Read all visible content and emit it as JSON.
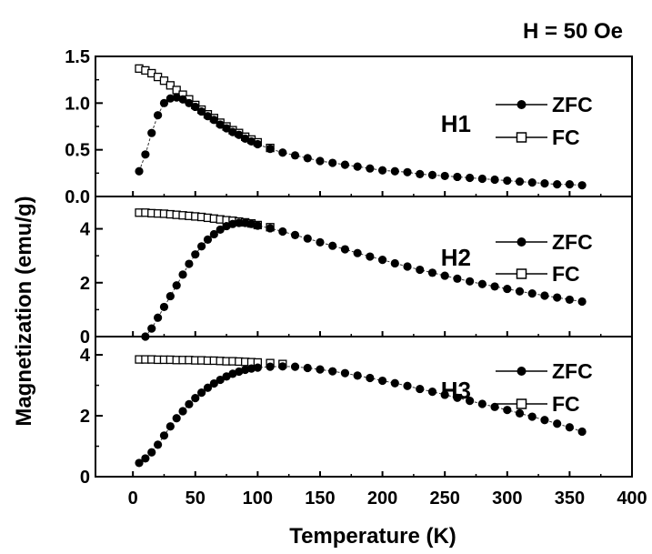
{
  "figure": {
    "field_label": "H = 50 Oe",
    "xlabel": "Temperature (K)",
    "ylabel": "Magnetization (emu/g)"
  },
  "chart_data": [
    {
      "type": "scatter",
      "panel_label": "H1",
      "xlim": [
        -30,
        400
      ],
      "ylim": [
        0,
        1.5
      ],
      "yticks": [
        0.0,
        0.5,
        1.0,
        1.5
      ],
      "ytick_labels": [
        "0.0",
        "0.5",
        "1.0",
        "1.5"
      ],
      "legend": {
        "zfc_label": "ZFC",
        "fc_label": "FC",
        "position": "right"
      },
      "zfc": [
        [
          5,
          0.27
        ],
        [
          10,
          0.45
        ],
        [
          15,
          0.68
        ],
        [
          20,
          0.87
        ],
        [
          25,
          1.0
        ],
        [
          30,
          1.05
        ],
        [
          35,
          1.06
        ],
        [
          40,
          1.04
        ],
        [
          45,
          1.0
        ],
        [
          50,
          0.96
        ],
        [
          55,
          0.91
        ],
        [
          60,
          0.86
        ],
        [
          65,
          0.82
        ],
        [
          70,
          0.77
        ],
        [
          75,
          0.73
        ],
        [
          80,
          0.69
        ],
        [
          85,
          0.66
        ],
        [
          90,
          0.62
        ],
        [
          95,
          0.59
        ],
        [
          100,
          0.56
        ],
        [
          110,
          0.51
        ],
        [
          120,
          0.47
        ],
        [
          130,
          0.44
        ],
        [
          140,
          0.41
        ],
        [
          150,
          0.38
        ],
        [
          160,
          0.36
        ],
        [
          170,
          0.34
        ],
        [
          180,
          0.32
        ],
        [
          190,
          0.3
        ],
        [
          200,
          0.28
        ],
        [
          210,
          0.27
        ],
        [
          220,
          0.26
        ],
        [
          230,
          0.24
        ],
        [
          240,
          0.23
        ],
        [
          250,
          0.22
        ],
        [
          260,
          0.21
        ],
        [
          270,
          0.2
        ],
        [
          280,
          0.19
        ],
        [
          290,
          0.18
        ],
        [
          300,
          0.17
        ],
        [
          310,
          0.16
        ],
        [
          320,
          0.15
        ],
        [
          330,
          0.14
        ],
        [
          340,
          0.13
        ],
        [
          350,
          0.13
        ],
        [
          360,
          0.12
        ]
      ],
      "fc": [
        [
          5,
          1.37
        ],
        [
          10,
          1.35
        ],
        [
          15,
          1.32
        ],
        [
          20,
          1.28
        ],
        [
          25,
          1.24
        ],
        [
          30,
          1.19
        ],
        [
          35,
          1.14
        ],
        [
          40,
          1.09
        ],
        [
          45,
          1.04
        ],
        [
          50,
          0.98
        ],
        [
          55,
          0.93
        ],
        [
          60,
          0.88
        ],
        [
          65,
          0.84
        ],
        [
          70,
          0.79
        ],
        [
          75,
          0.75
        ],
        [
          80,
          0.71
        ],
        [
          85,
          0.68
        ],
        [
          90,
          0.64
        ],
        [
          95,
          0.61
        ],
        [
          100,
          0.58
        ],
        [
          110,
          0.52
        ]
      ]
    },
    {
      "type": "scatter",
      "panel_label": "H2",
      "xlim": [
        -30,
        400
      ],
      "ylim": [
        0,
        5.2
      ],
      "yticks": [
        0,
        2,
        4
      ],
      "ytick_labels": [
        "0",
        "2",
        "4"
      ],
      "legend": {
        "zfc_label": "ZFC",
        "fc_label": "FC",
        "position": "right"
      },
      "zfc": [
        [
          10,
          0.0
        ],
        [
          15,
          0.3
        ],
        [
          20,
          0.7
        ],
        [
          25,
          1.1
        ],
        [
          30,
          1.5
        ],
        [
          35,
          1.9
        ],
        [
          40,
          2.3
        ],
        [
          45,
          2.7
        ],
        [
          50,
          3.05
        ],
        [
          55,
          3.35
        ],
        [
          60,
          3.6
        ],
        [
          65,
          3.8
        ],
        [
          70,
          3.97
        ],
        [
          75,
          4.1
        ],
        [
          80,
          4.18
        ],
        [
          85,
          4.22
        ],
        [
          90,
          4.22
        ],
        [
          95,
          4.18
        ],
        [
          100,
          4.12
        ],
        [
          110,
          4.02
        ],
        [
          120,
          3.9
        ],
        [
          130,
          3.77
        ],
        [
          140,
          3.64
        ],
        [
          150,
          3.5
        ],
        [
          160,
          3.37
        ],
        [
          170,
          3.24
        ],
        [
          180,
          3.1
        ],
        [
          190,
          2.97
        ],
        [
          200,
          2.85
        ],
        [
          210,
          2.72
        ],
        [
          220,
          2.6
        ],
        [
          230,
          2.48
        ],
        [
          240,
          2.37
        ],
        [
          250,
          2.26
        ],
        [
          260,
          2.15
        ],
        [
          270,
          2.05
        ],
        [
          280,
          1.95
        ],
        [
          290,
          1.86
        ],
        [
          300,
          1.77
        ],
        [
          310,
          1.68
        ],
        [
          320,
          1.6
        ],
        [
          330,
          1.52
        ],
        [
          340,
          1.45
        ],
        [
          350,
          1.37
        ],
        [
          360,
          1.3
        ]
      ],
      "fc": [
        [
          5,
          4.6
        ],
        [
          10,
          4.6
        ],
        [
          15,
          4.58
        ],
        [
          20,
          4.57
        ],
        [
          25,
          4.56
        ],
        [
          30,
          4.54
        ],
        [
          35,
          4.52
        ],
        [
          40,
          4.5
        ],
        [
          45,
          4.48
        ],
        [
          50,
          4.46
        ],
        [
          55,
          4.44
        ],
        [
          60,
          4.41
        ],
        [
          65,
          4.38
        ],
        [
          70,
          4.35
        ],
        [
          75,
          4.32
        ],
        [
          80,
          4.3
        ],
        [
          85,
          4.27
        ],
        [
          90,
          4.24
        ],
        [
          95,
          4.2
        ],
        [
          100,
          4.14
        ],
        [
          110,
          4.06
        ]
      ]
    },
    {
      "type": "scatter",
      "panel_label": "H3",
      "xlim": [
        -30,
        400
      ],
      "ylim": [
        0,
        4.6
      ],
      "yticks": [
        0,
        2,
        4
      ],
      "ytick_labels": [
        "0",
        "2",
        "4"
      ],
      "xticks": [
        0,
        50,
        100,
        150,
        200,
        250,
        300,
        350,
        400
      ],
      "xtick_labels": [
        "0",
        "50",
        "100",
        "150",
        "200",
        "250",
        "300",
        "350",
        "400"
      ],
      "legend": {
        "zfc_label": "ZFC",
        "fc_label": "FC",
        "position": "right"
      },
      "zfc": [
        [
          5,
          0.45
        ],
        [
          10,
          0.6
        ],
        [
          15,
          0.8
        ],
        [
          20,
          1.05
        ],
        [
          25,
          1.35
        ],
        [
          30,
          1.65
        ],
        [
          35,
          1.92
        ],
        [
          40,
          2.15
        ],
        [
          45,
          2.38
        ],
        [
          50,
          2.58
        ],
        [
          55,
          2.76
        ],
        [
          60,
          2.92
        ],
        [
          65,
          3.06
        ],
        [
          70,
          3.18
        ],
        [
          75,
          3.29
        ],
        [
          80,
          3.38
        ],
        [
          85,
          3.45
        ],
        [
          90,
          3.51
        ],
        [
          95,
          3.55
        ],
        [
          100,
          3.58
        ],
        [
          110,
          3.61
        ],
        [
          120,
          3.62
        ],
        [
          130,
          3.61
        ],
        [
          140,
          3.57
        ],
        [
          150,
          3.52
        ],
        [
          160,
          3.46
        ],
        [
          170,
          3.4
        ],
        [
          180,
          3.32
        ],
        [
          190,
          3.24
        ],
        [
          200,
          3.15
        ],
        [
          210,
          3.07
        ],
        [
          220,
          2.98
        ],
        [
          230,
          2.88
        ],
        [
          240,
          2.79
        ],
        [
          250,
          2.69
        ],
        [
          260,
          2.59
        ],
        [
          270,
          2.49
        ],
        [
          280,
          2.39
        ],
        [
          290,
          2.29
        ],
        [
          300,
          2.19
        ],
        [
          310,
          2.08
        ],
        [
          320,
          1.97
        ],
        [
          330,
          1.86
        ],
        [
          340,
          1.74
        ],
        [
          350,
          1.62
        ],
        [
          360,
          1.48
        ]
      ],
      "fc": [
        [
          5,
          3.85
        ],
        [
          10,
          3.85
        ],
        [
          15,
          3.85
        ],
        [
          20,
          3.84
        ],
        [
          25,
          3.84
        ],
        [
          30,
          3.84
        ],
        [
          35,
          3.83
        ],
        [
          40,
          3.83
        ],
        [
          45,
          3.83
        ],
        [
          50,
          3.82
        ],
        [
          55,
          3.82
        ],
        [
          60,
          3.81
        ],
        [
          65,
          3.81
        ],
        [
          70,
          3.8
        ],
        [
          75,
          3.79
        ],
        [
          80,
          3.79
        ],
        [
          85,
          3.78
        ],
        [
          90,
          3.77
        ],
        [
          95,
          3.76
        ],
        [
          100,
          3.75
        ],
        [
          110,
          3.73
        ],
        [
          120,
          3.7
        ]
      ]
    }
  ]
}
